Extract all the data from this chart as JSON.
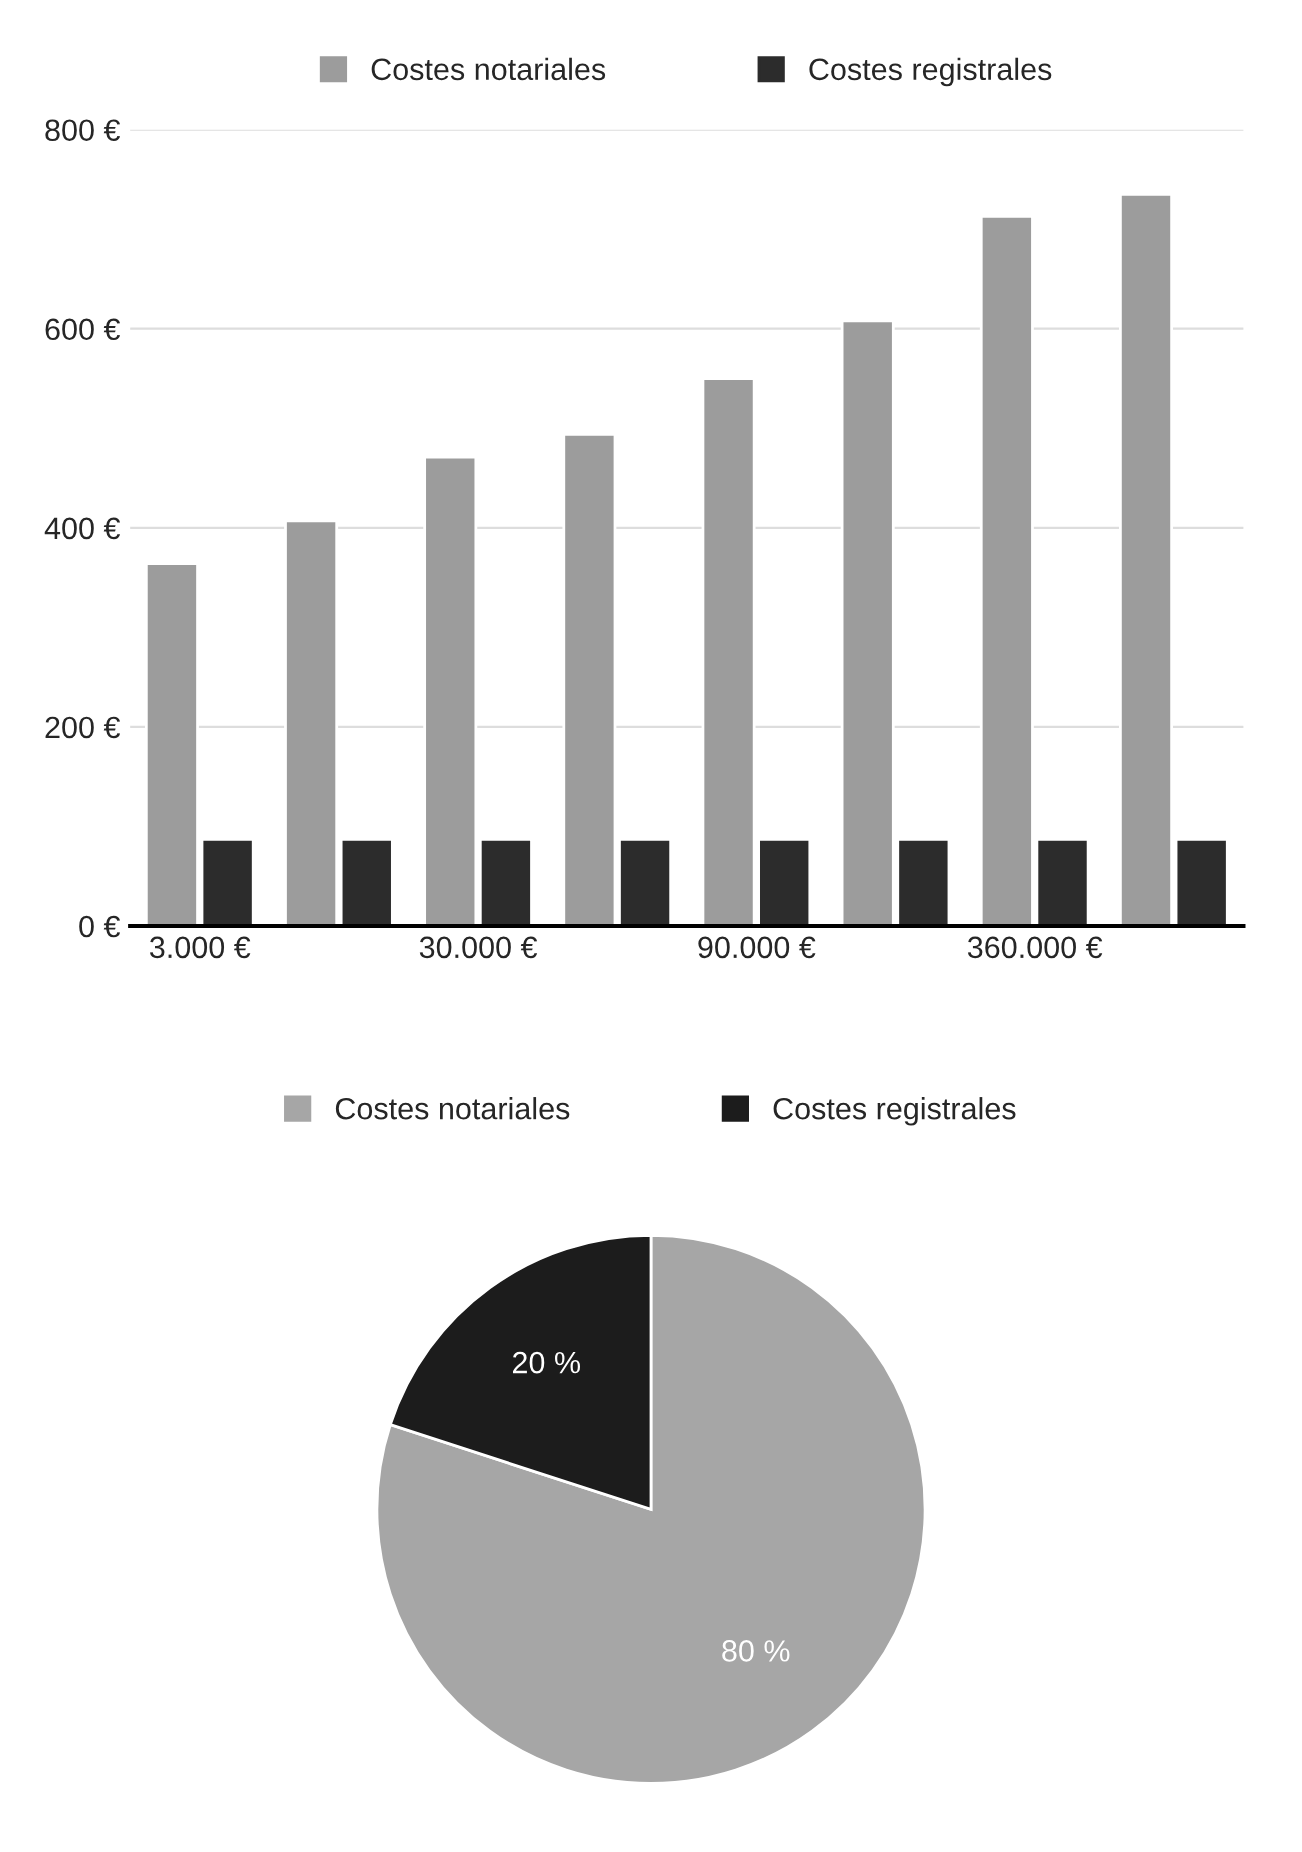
{
  "chart_data": [
    {
      "type": "bar",
      "categories": [
        "3.000 €",
        null,
        "30.000 €",
        null,
        "90.000 €",
        null,
        "360.000 €",
        null
      ],
      "series": [
        {
          "name": "Costes notariales",
          "color": "#9c9c9c",
          "values": [
            364,
            407,
            471,
            494,
            550,
            608,
            713,
            735
          ]
        },
        {
          "name": "Costes registrales",
          "color": "#2c2c2c",
          "values": [
            87,
            87,
            87,
            87,
            87,
            87,
            87,
            87
          ]
        }
      ],
      "ylim": [
        0,
        800
      ],
      "yticks": [
        {
          "value": 0,
          "label": "0 €"
        },
        {
          "value": 200,
          "label": "200 €"
        },
        {
          "value": 400,
          "label": "400 €"
        },
        {
          "value": 600,
          "label": "600 €"
        },
        {
          "value": 800,
          "label": "800 €"
        }
      ],
      "grid": "y",
      "legend": "top"
    },
    {
      "type": "pie",
      "categories": [
        "Costes notariales",
        "Costes registrales"
      ],
      "values": [
        80,
        20
      ],
      "colors": [
        "#a6a6a6",
        "#1c1c1c"
      ],
      "value_labels": [
        "80 %",
        "20 %"
      ],
      "legend": "top"
    }
  ]
}
